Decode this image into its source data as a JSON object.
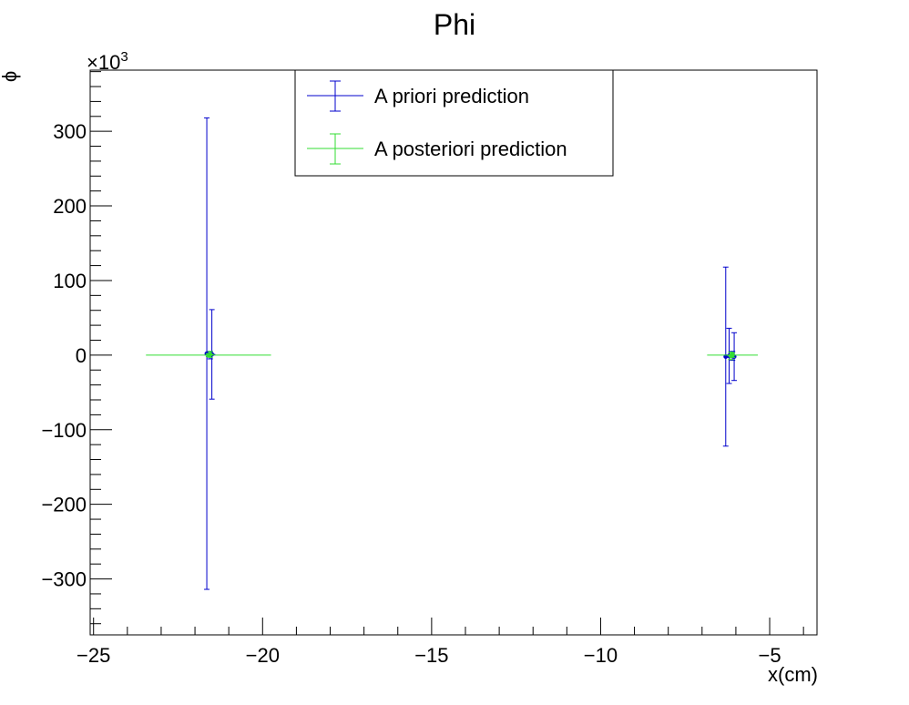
{
  "chart_data": {
    "type": "scatter",
    "title": "Phi",
    "xlabel": "x(cm)",
    "ylabel": "ϕ",
    "y_exponent_label": "×10",
    "y_exponent_power": "3",
    "xlim": [
      -25.1,
      -3.6
    ],
    "ylim": [
      -375,
      382
    ],
    "x_ticks": [
      -25,
      -20,
      -15,
      -10,
      -5
    ],
    "x_tick_labels": [
      "−25",
      "−20",
      "−15",
      "−10",
      "−5"
    ],
    "y_ticks": [
      -300,
      -200,
      -100,
      0,
      100,
      200,
      300
    ],
    "y_tick_labels": [
      "−300",
      "−200",
      "−100",
      "0",
      "100",
      "200",
      "300"
    ],
    "grid": false,
    "legend_position": "top-center",
    "series": [
      {
        "name": "A priori prediction",
        "color": "#0000cc",
        "points": [
          {
            "x": -21.65,
            "y": 2,
            "xerr": 0,
            "yerr": 316
          },
          {
            "x": -21.5,
            "y": 1,
            "xerr": 0.1,
            "yerr": 60
          },
          {
            "x": -21.55,
            "y": 0,
            "xerr": 0,
            "yerr": 5
          },
          {
            "x": -6.3,
            "y": -2,
            "xerr": 0,
            "yerr": 120
          },
          {
            "x": -6.2,
            "y": -1,
            "xerr": 0,
            "yerr": 37
          },
          {
            "x": -6.05,
            "y": -2,
            "xerr": 0.05,
            "yerr": 32
          },
          {
            "x": -6.1,
            "y": -1,
            "xerr": 0.1,
            "yerr": 6
          }
        ]
      },
      {
        "name": "A posteriori prediction",
        "color": "#33dd33",
        "points": [
          {
            "x": -21.6,
            "y": 0,
            "xerr": 1.85,
            "yerr": 2
          },
          {
            "x": -6.1,
            "y": 0,
            "xerr": 0.75,
            "yerr": 3
          },
          {
            "x": -21.55,
            "y": 1,
            "xerr": 0.1,
            "yerr": 4
          },
          {
            "x": -6.15,
            "y": -1,
            "xerr": 0.1,
            "yerr": 5
          }
        ]
      }
    ]
  }
}
